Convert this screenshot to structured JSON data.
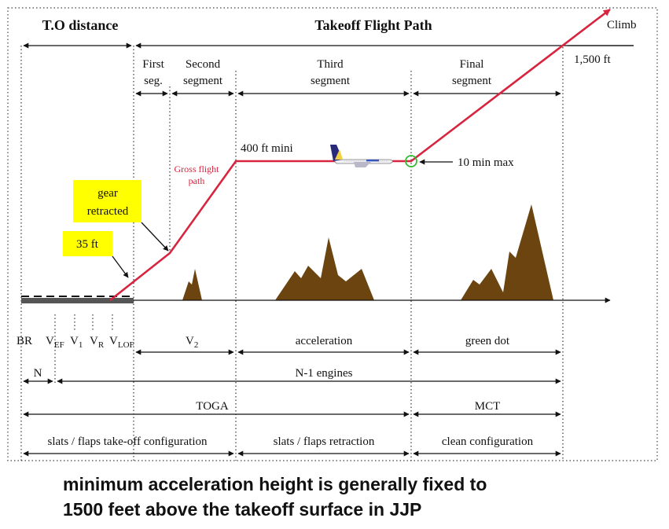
{
  "headers": {
    "to_distance": "T.O distance",
    "takeoff_flight_path": "Takeoff Flight Path",
    "climb": "Climb"
  },
  "segments": {
    "first_line1": "First",
    "first_line2": "seg.",
    "second_line1": "Second",
    "second_line2": "segment",
    "third_line1": "Third",
    "third_line2": "segment",
    "final_line1": "Final",
    "final_line2": "segment"
  },
  "annotations": {
    "altitude_1500": "1,500 ft",
    "altitude_400": "400 ft mini",
    "ten_min_max": "10 min max",
    "gross_flight_path_line1": "Gross flight",
    "gross_flight_path_line2": "path",
    "gear_retracted_line1": "gear",
    "gear_retracted_line2": "retracted",
    "ft35": "35 ft"
  },
  "speeds": {
    "br": "BR",
    "vef": {
      "main": "V",
      "sub": "EF"
    },
    "v1": {
      "main": "V",
      "sub": "1"
    },
    "vr": {
      "main": "V",
      "sub": "R"
    },
    "vlof": {
      "main": "V",
      "sub": "LOF"
    },
    "v2": {
      "main": "V",
      "sub": "2"
    },
    "acceleration": "acceleration",
    "green_dot": "green dot"
  },
  "engines": {
    "n": "N",
    "n_minus_1": "N-1 engines"
  },
  "thrust": {
    "toga": "TOGA",
    "mct": "MCT"
  },
  "configuration": {
    "takeoff": "slats / flaps take-off configuration",
    "retraction": "slats / flaps retraction",
    "clean": "clean configuration"
  },
  "caption": {
    "line1": "minimum acceleration height  is generally fixed to",
    "line2": "1500 feet above the takeoff surface in JJP"
  },
  "colors": {
    "flight_path": "#d8243f",
    "mountain": "#6b4410",
    "callout_fill": "#ffff00",
    "green_dot": "#33bb33",
    "runway": "#555555"
  }
}
